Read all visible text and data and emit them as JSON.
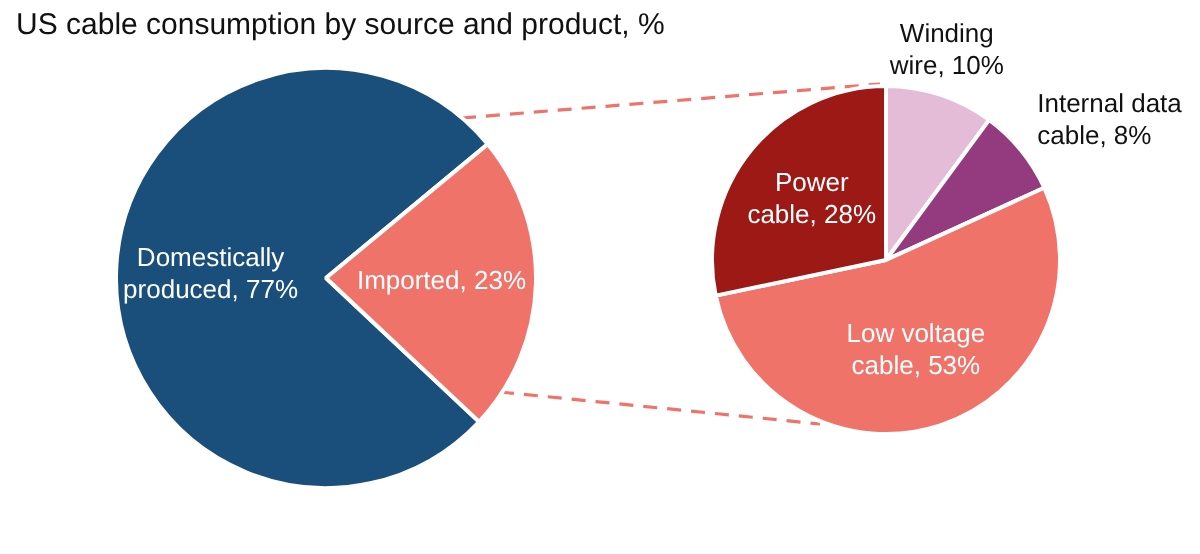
{
  "chart_data": [
    {
      "type": "pie",
      "title": "US cable consumption by source and product, %",
      "categories": [
        "Domestically produced",
        "Imported"
      ],
      "values": [
        77,
        23
      ],
      "value_labels": [
        "77%",
        "23%"
      ],
      "colors": [
        "#1a4f7c",
        "#ef7369"
      ],
      "legend": false
    },
    {
      "type": "pie",
      "categories": [
        "Winding wire",
        "Internal data cable",
        "Low voltage cable",
        "Power cable"
      ],
      "values": [
        10,
        8,
        53,
        28
      ],
      "value_labels": [
        "10%",
        "8%",
        "53%",
        "28%"
      ],
      "colors": [
        "#e4bcd8",
        "#943a7e",
        "#ef7369",
        "#9c1915"
      ],
      "legend": false
    }
  ]
}
